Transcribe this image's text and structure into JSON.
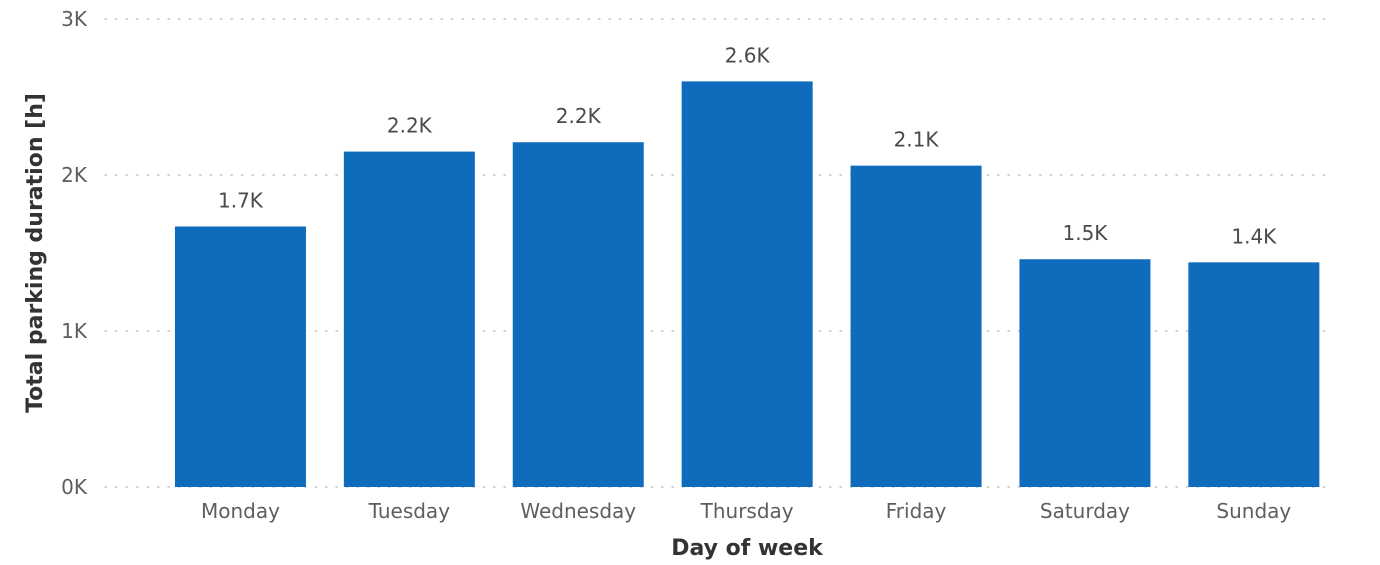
{
  "chart_data": {
    "type": "bar",
    "categories": [
      "Monday",
      "Tuesday",
      "Wednesday",
      "Thursday",
      "Friday",
      "Saturday",
      "Sunday"
    ],
    "values": [
      1670,
      2150,
      2210,
      2600,
      2060,
      1460,
      1440
    ],
    "data_labels": [
      "1.7K",
      "2.2K",
      "2.2K",
      "2.6K",
      "2.1K",
      "1.5K",
      "1.4K"
    ],
    "title": "",
    "xlabel": "Day of week",
    "ylabel": "Total parking duration [h]",
    "ylim": [
      0,
      3000
    ],
    "yticks": [
      0,
      1000,
      2000,
      3000
    ],
    "ytick_labels": [
      "0K",
      "1K",
      "2K",
      "3K"
    ],
    "grid": "horizontal dotted",
    "legend": "none",
    "bar_color": "#0f6cbd"
  }
}
